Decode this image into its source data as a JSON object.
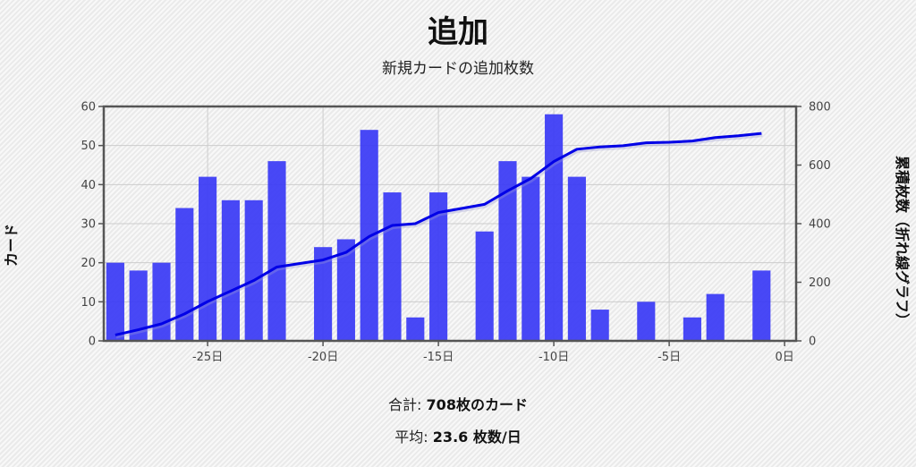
{
  "header": {
    "title": "追加",
    "subtitle": "新規カードの追加枚数"
  },
  "stats": {
    "total_label": "合計:",
    "total_value": "708枚のカード",
    "avg_label": "平均:",
    "avg_value": "23.6 枚数/日"
  },
  "colors": {
    "bars": "#3a3af5",
    "line": "#0000e6",
    "grid": "#cccccc",
    "frame": "#555555"
  },
  "chart_data": {
    "type": "bar",
    "xlabel": "",
    "ylabel": "カード",
    "y2label": "累積枚数（折れ線グラフ）",
    "xlim": [
      -29.5,
      0.5
    ],
    "ylim": [
      0,
      60
    ],
    "y2lim": [
      0,
      800
    ],
    "grid": true,
    "xticks": [
      -25,
      -20,
      -15,
      -10,
      -5,
      0
    ],
    "xtick_labels": [
      "-25日",
      "-20日",
      "-15日",
      "-10日",
      "-5日",
      "0日"
    ],
    "yticks": [
      0,
      10,
      20,
      30,
      40,
      50,
      60
    ],
    "y2ticks": [
      0,
      200,
      400,
      600,
      800
    ],
    "bars": {
      "x": [
        -29,
        -28,
        -27,
        -26,
        -25,
        -24,
        -23,
        -22,
        -20,
        -19,
        -18,
        -17,
        -16,
        -15,
        -13,
        -12,
        -11,
        -10,
        -9,
        -8,
        -6,
        -4,
        -3,
        -1
      ],
      "values": [
        20,
        18,
        20,
        34,
        42,
        36,
        36,
        46,
        24,
        26,
        54,
        38,
        6,
        38,
        28,
        46,
        42,
        58,
        42,
        8,
        10,
        6,
        12,
        18
      ]
    },
    "line": {
      "x": [
        -29,
        -28,
        -27,
        -26,
        -25,
        -24,
        -23,
        -22,
        -21,
        -20,
        -19,
        -18,
        -17,
        -16,
        -15,
        -14,
        -13,
        -12,
        -11,
        -10,
        -9,
        -8,
        -7,
        -6,
        -5,
        -4,
        -3,
        -2,
        -1
      ],
      "values": [
        20,
        38,
        58,
        92,
        134,
        170,
        206,
        252,
        264,
        276,
        302,
        356,
        394,
        400,
        438,
        452,
        466,
        512,
        554,
        612,
        654,
        662,
        666,
        676,
        678,
        682,
        694,
        700,
        708
      ]
    }
  }
}
